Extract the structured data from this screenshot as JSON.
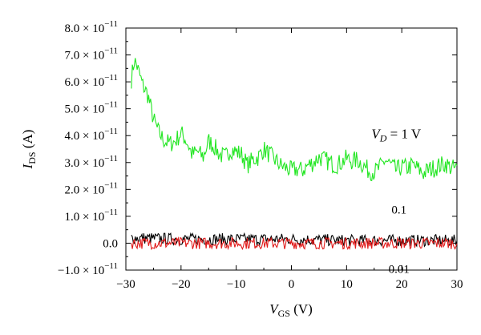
{
  "chart_data": {
    "type": "line",
    "xlabel": {
      "var": "V",
      "sub": "GS",
      "unit": " (V)"
    },
    "ylabel": {
      "var": "I",
      "sub": "DS",
      "unit": " (A)"
    },
    "xlim": [
      -30,
      30
    ],
    "ylim": [
      -1e-11,
      8e-11
    ],
    "xticks": [
      {
        "value": -30,
        "label": "−30"
      },
      {
        "value": -20,
        "label": "−20"
      },
      {
        "value": -10,
        "label": "−10"
      },
      {
        "value": 0,
        "label": "0"
      },
      {
        "value": 10,
        "label": "10"
      },
      {
        "value": 20,
        "label": "20"
      },
      {
        "value": 30,
        "label": "30"
      }
    ],
    "yticks": [
      {
        "value": -1e-11,
        "mant": "−1.0",
        "exp": "−11"
      },
      {
        "value": 0,
        "mant": "0.0",
        "exp": ""
      },
      {
        "value": 1e-11,
        "mant": "1.0",
        "exp": "−11"
      },
      {
        "value": 2e-11,
        "mant": "2.0",
        "exp": "−11"
      },
      {
        "value": 3e-11,
        "mant": "3.0",
        "exp": "−11"
      },
      {
        "value": 4e-11,
        "mant": "4.0",
        "exp": "−11"
      },
      {
        "value": 5e-11,
        "mant": "5.0",
        "exp": "−11"
      },
      {
        "value": 6e-11,
        "mant": "6.0",
        "exp": "−11"
      },
      {
        "value": 7e-11,
        "mant": "7.0",
        "exp": "−11"
      },
      {
        "value": 8e-11,
        "mant": "8.0",
        "exp": "−11"
      }
    ],
    "times_symbol": "× 10",
    "series": [
      {
        "name": "V_D = 1 V",
        "color": "#22e622",
        "x": [
          -29,
          -28.5,
          -28,
          -27,
          -26,
          -25,
          -24,
          -23,
          -22,
          -21,
          -20,
          -19,
          -18,
          -17,
          -16,
          -15,
          -14,
          -13,
          -12,
          -11,
          -10,
          -9,
          -8,
          -7,
          -6,
          -5,
          -4,
          -3,
          -2,
          -1,
          0,
          1,
          2,
          3,
          4,
          5,
          6,
          7,
          8,
          9,
          10,
          11,
          12,
          13,
          14,
          15,
          16,
          17,
          18,
          19,
          20,
          21,
          22,
          23,
          24,
          25,
          26,
          27,
          28,
          29,
          30
        ],
        "y": [
          6.1e-11,
          6.8e-11,
          6.6e-11,
          5.9e-11,
          5.5e-11,
          4.6e-11,
          4.1e-11,
          3.8e-11,
          3.7e-11,
          3.8e-11,
          4.1e-11,
          3.8e-11,
          3.3e-11,
          3.4e-11,
          3.2e-11,
          3.8e-11,
          3.6e-11,
          3.3e-11,
          3.2e-11,
          3.5e-11,
          3.4e-11,
          3.3e-11,
          2.9e-11,
          3.1e-11,
          3.2e-11,
          3.5e-11,
          3.3e-11,
          3.1e-11,
          2.9e-11,
          2.8e-11,
          2.7e-11,
          2.75e-11,
          2.7e-11,
          2.9e-11,
          3e-11,
          3.2e-11,
          3.1e-11,
          3e-11,
          2.9e-11,
          3e-11,
          3.15e-11,
          3.05e-11,
          3.1e-11,
          2.9e-11,
          2.7e-11,
          2.65e-11,
          2.8e-11,
          3.1e-11,
          2.9e-11,
          2.7e-11,
          2.85e-11,
          2.8e-11,
          2.9e-11,
          2.75e-11,
          2.6e-11,
          2.75e-11,
          2.8e-11,
          2.9e-11,
          2.95e-11,
          2.8e-11,
          2.75e-11
        ]
      },
      {
        "name": "0.1",
        "color": "#000000",
        "x": [
          -29,
          -20,
          -10,
          0,
          10,
          20,
          30
        ],
        "y": [
          2e-12,
          1.5e-12,
          1.5e-12,
          1.5e-12,
          1e-12,
          1e-12,
          1e-12
        ]
      },
      {
        "name": "0.01",
        "color": "#e11b1b",
        "x": [
          -29,
          -20,
          -10,
          0,
          10,
          20,
          30
        ],
        "y": [
          0,
          0,
          0,
          0,
          0,
          0,
          0
        ]
      }
    ],
    "annotations": [
      {
        "var": "V",
        "sub": "D",
        "text": " = 1 V",
        "x": 19,
        "y": 3.9e-11
      },
      {
        "text": "0.1",
        "x": 19.5,
        "y": 1.1e-11
      },
      {
        "text": "0.01",
        "x": 19.5,
        "y": -1.1e-11
      }
    ]
  }
}
